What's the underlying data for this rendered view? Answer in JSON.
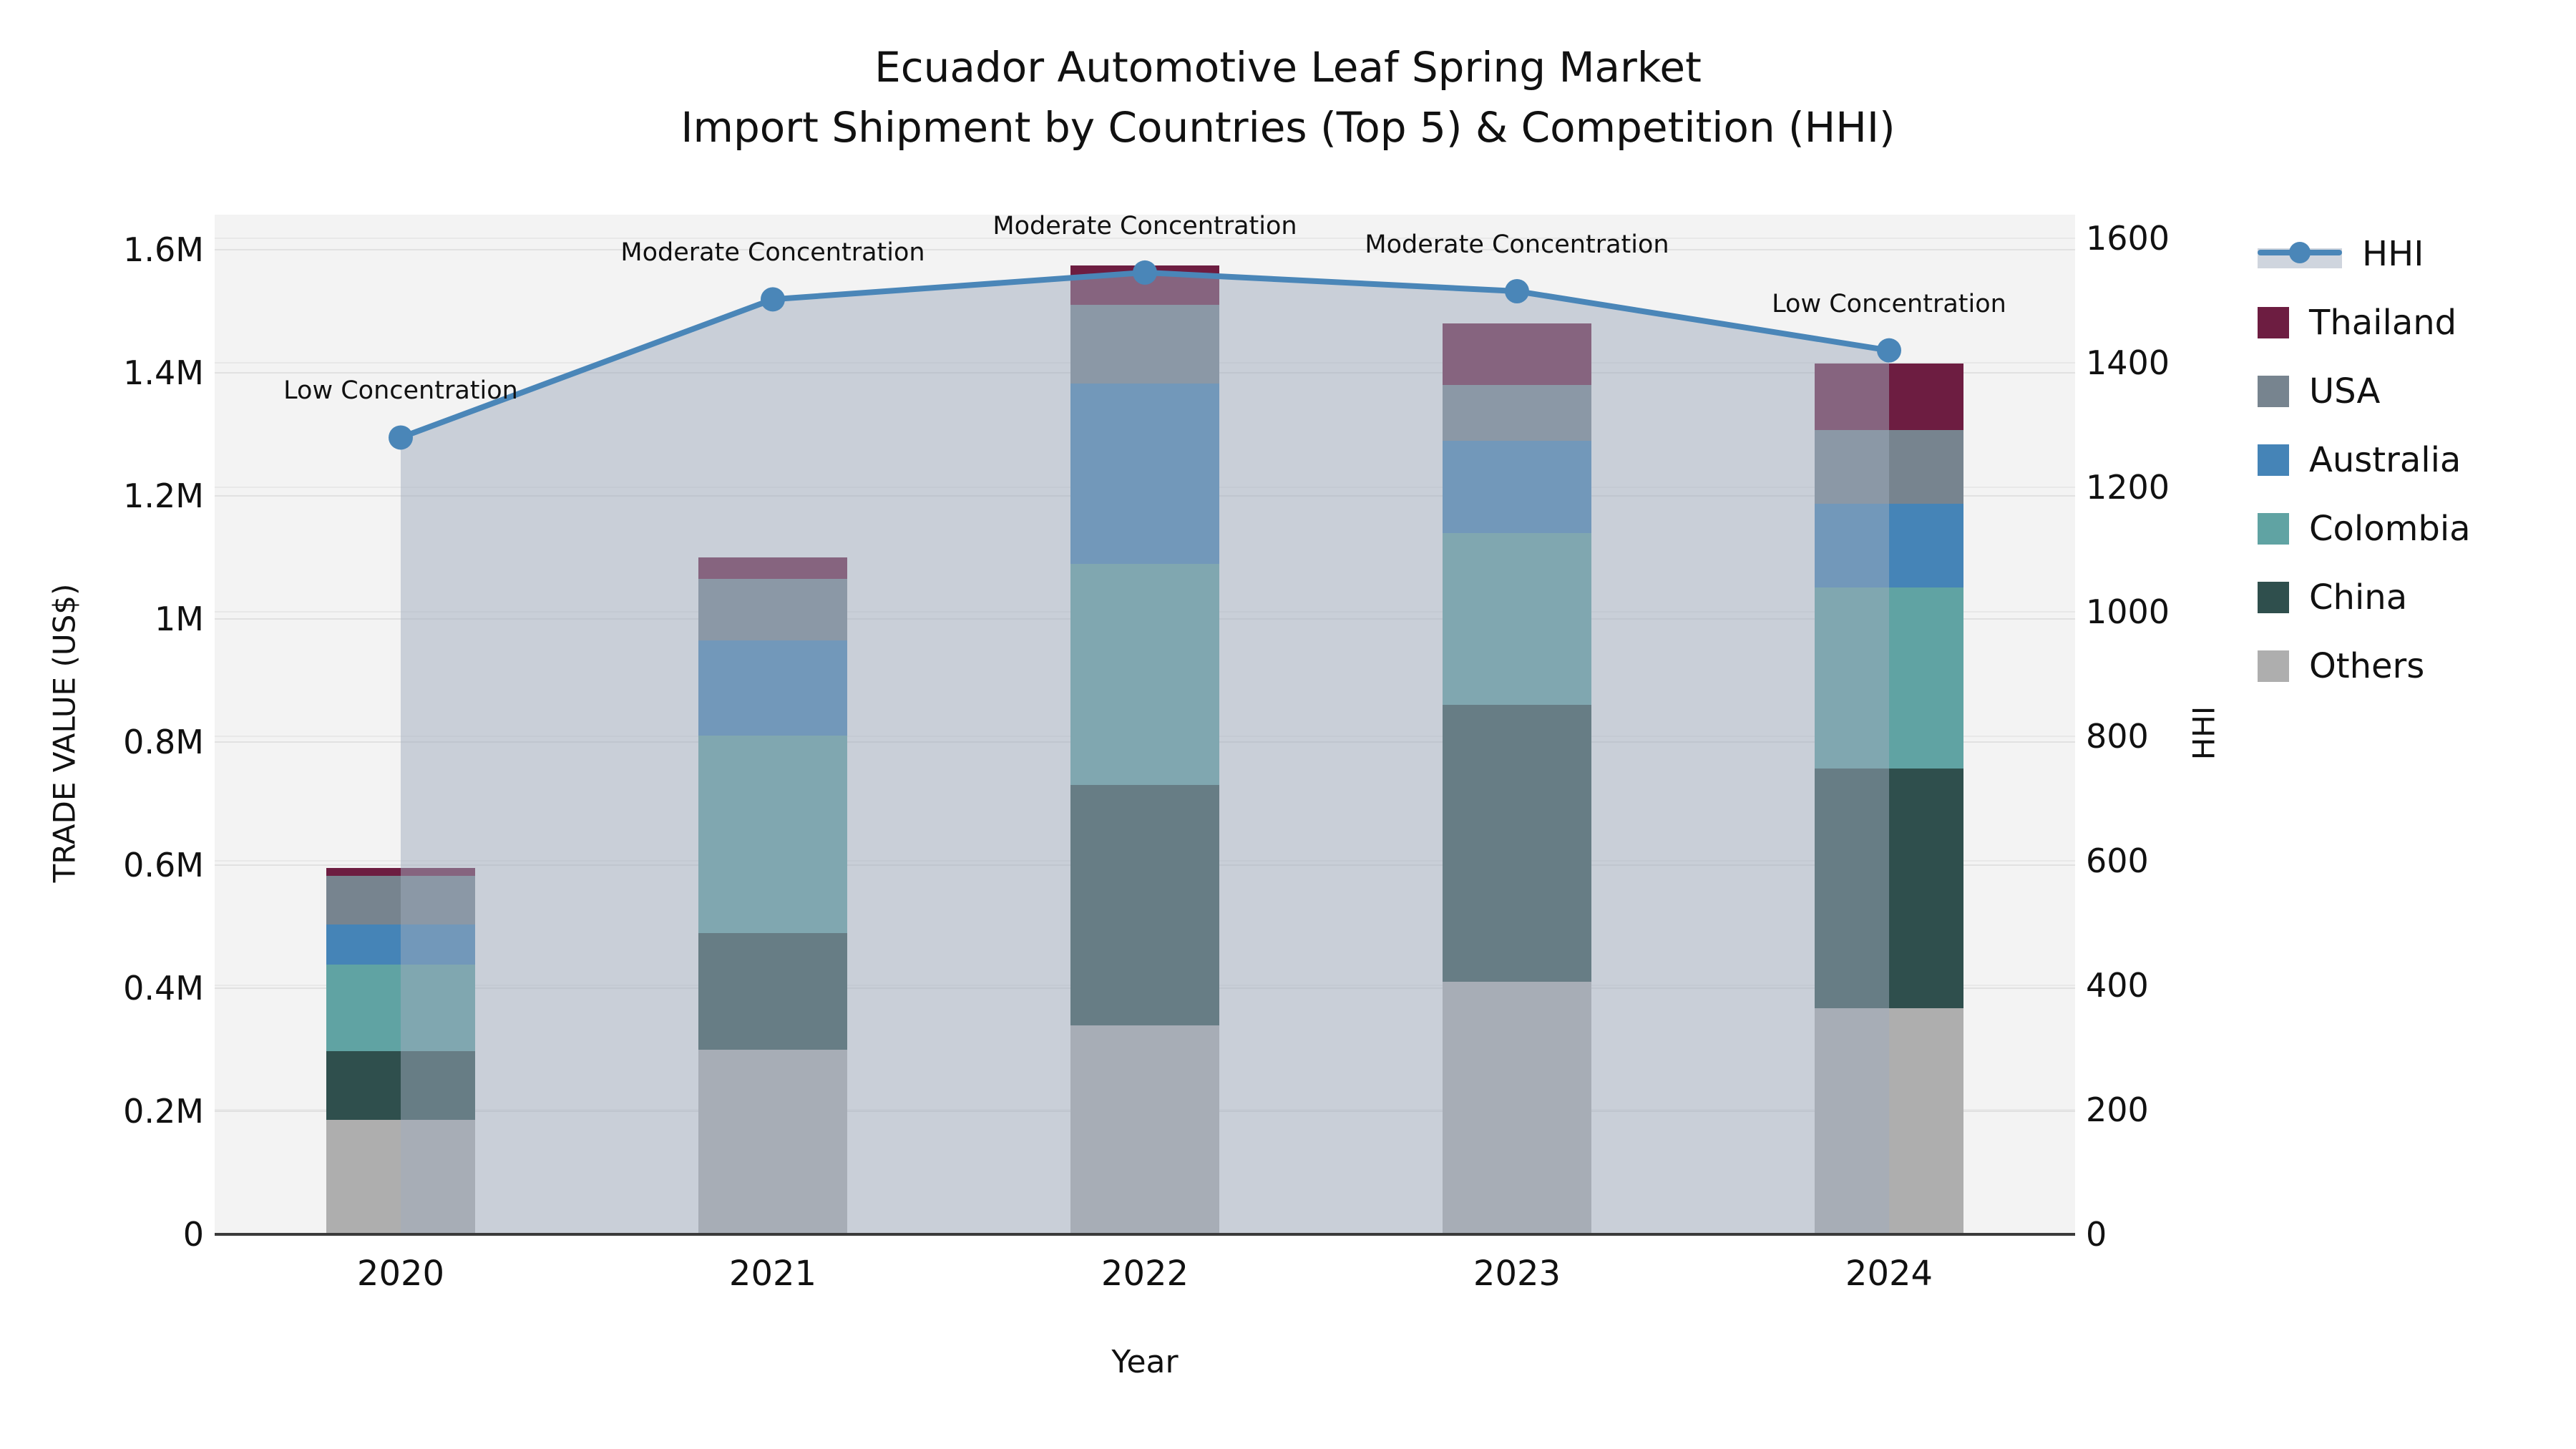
{
  "title": {
    "line1": "Ecuador Automotive Leaf Spring Market",
    "line2": "Import Shipment by Countries (Top 5) & Competition (HHI)"
  },
  "axes": {
    "x_label": "Year",
    "y_left_label": "TRADE VALUE (US$)",
    "y_right_label": "HHI"
  },
  "legend": [
    {
      "label": "HHI",
      "type": "line",
      "color_key": "hhi_line"
    },
    {
      "label": "Thailand",
      "type": "patch",
      "color_key": "thailand"
    },
    {
      "label": "USA",
      "type": "patch",
      "color_key": "usa"
    },
    {
      "label": "Australia",
      "type": "patch",
      "color_key": "australia"
    },
    {
      "label": "Colombia",
      "type": "patch",
      "color_key": "colombia"
    },
    {
      "label": "China",
      "type": "patch",
      "color_key": "china"
    },
    {
      "label": "Others",
      "type": "patch",
      "color_key": "others"
    }
  ],
  "colors": {
    "thailand": "#6d1d41",
    "usa": "#77848f",
    "australia": "#4584b7",
    "colombia": "#60a3a3",
    "china": "#2f4f4d",
    "others": "#aeaeae",
    "hhi_line": "#4a86b8",
    "area_fill": "#9fabbd",
    "area_fill_opacity": 0.5,
    "plot_bg": "#f3f3f3",
    "axis_line": "#3a3a3a"
  },
  "chart_data": {
    "type": "bar",
    "subtype": "stacked bars (left axis, trade value US$) + HHI line with area fill (right axis)",
    "categories": [
      "2020",
      "2021",
      "2022",
      "2023",
      "2024"
    ],
    "bar_unit": "US$",
    "series": [
      {
        "name": "Others",
        "color_key": "others",
        "values": [
          186000,
          300000,
          340000,
          410000,
          367000
        ]
      },
      {
        "name": "China",
        "color_key": "china",
        "values": [
          112000,
          190000,
          390000,
          450000,
          390000
        ]
      },
      {
        "name": "Colombia",
        "color_key": "colombia",
        "values": [
          140000,
          320000,
          360000,
          280000,
          294000
        ]
      },
      {
        "name": "Australia",
        "color_key": "australia",
        "values": [
          65000,
          155000,
          292000,
          150000,
          136000
        ]
      },
      {
        "name": "USA",
        "color_key": "usa",
        "values": [
          80000,
          100000,
          128000,
          90000,
          120000
        ]
      },
      {
        "name": "Thailand",
        "color_key": "thailand",
        "values": [
          12000,
          35000,
          64000,
          100000,
          108000
        ]
      }
    ],
    "bar_totals": [
      595000,
      1100000,
      1574000,
      1480000,
      1415000
    ],
    "line_series": {
      "name": "HHI",
      "values": [
        1280,
        1502,
        1545,
        1515,
        1420
      ]
    },
    "annotations": [
      {
        "category": "2020",
        "text": "Low Concentration"
      },
      {
        "category": "2021",
        "text": "Moderate Concentration"
      },
      {
        "category": "2022",
        "text": "Moderate Concentration"
      },
      {
        "category": "2023",
        "text": "Moderate Concentration"
      },
      {
        "category": "2024",
        "text": "Low Concentration"
      }
    ],
    "y_left": {
      "axis_max": 1657000,
      "tick_step": 200000,
      "tick_labels": [
        "0",
        "0.2M",
        "0.4M",
        "0.6M",
        "0.8M",
        "1M",
        "1.2M",
        "1.4M",
        "1.6M"
      ]
    },
    "y_right": {
      "axis_max": 1638,
      "tick_step": 200,
      "tick_labels": [
        "0",
        "200",
        "400",
        "600",
        "800",
        "1000",
        "1200",
        "1400",
        "1600"
      ]
    },
    "grid": "horizontal gridlines for both axes",
    "legend_position": "upper right, outside plot"
  }
}
